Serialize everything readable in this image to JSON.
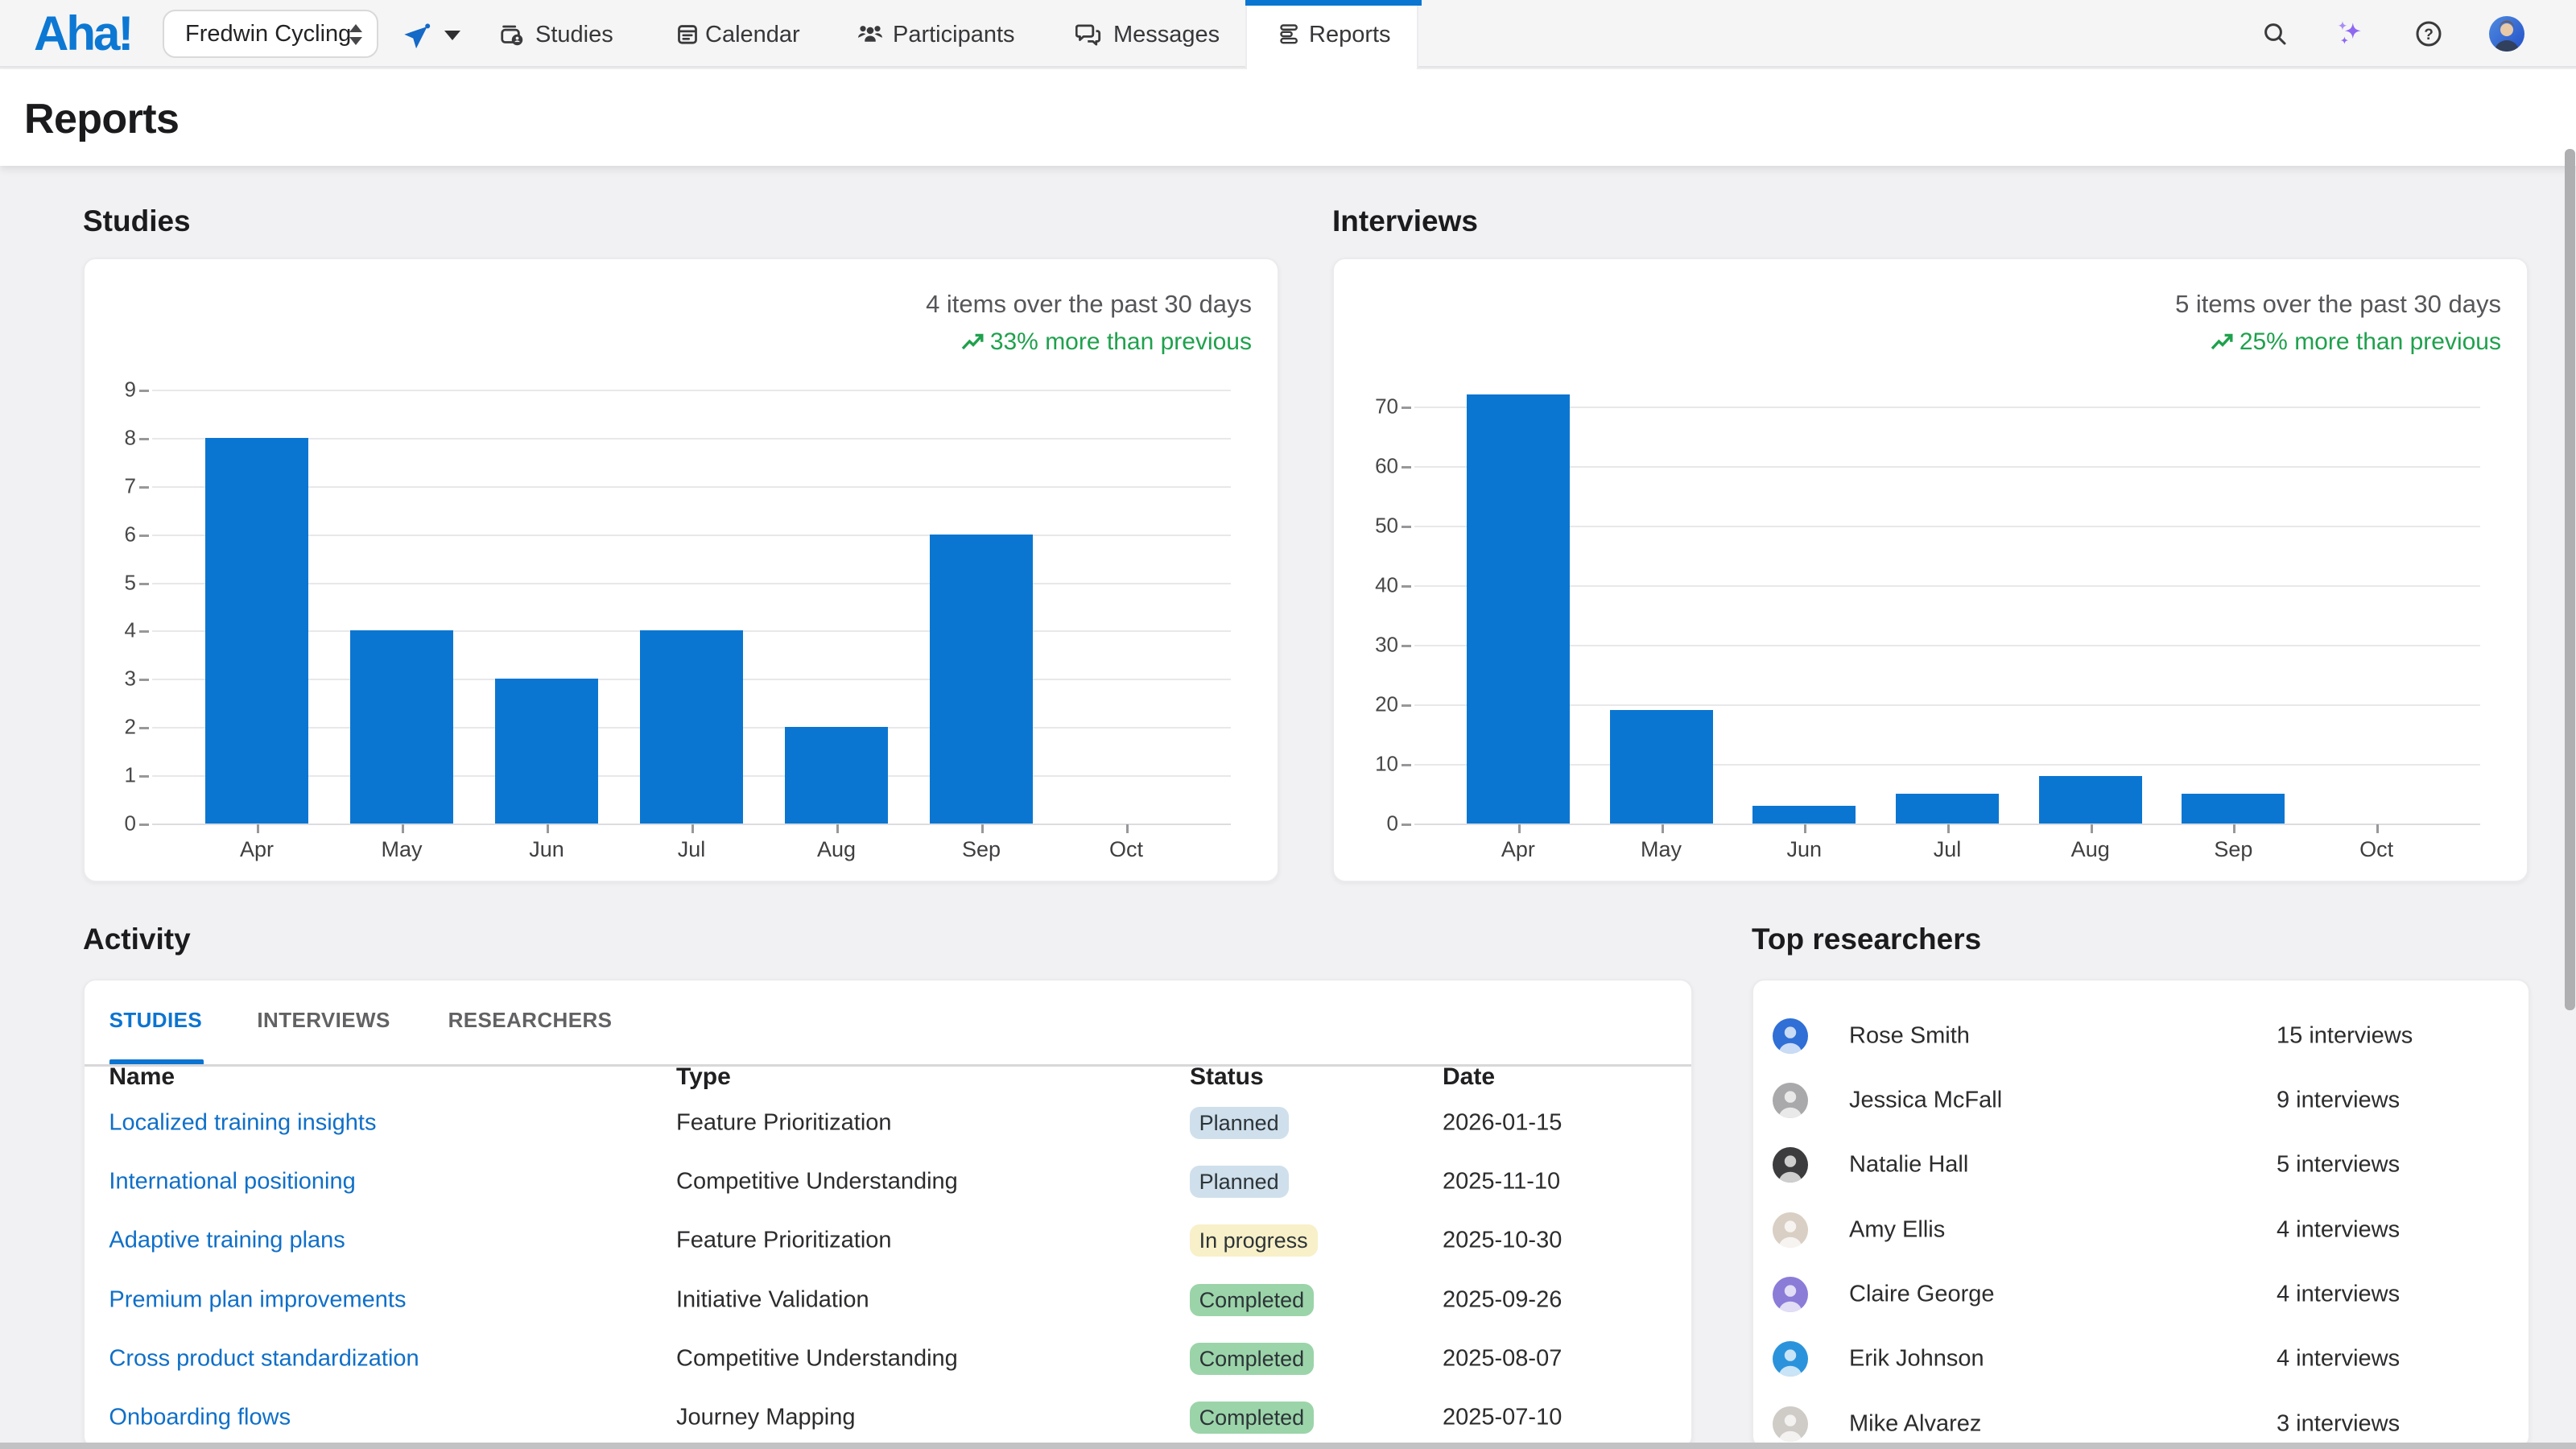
{
  "brand": {
    "logo_text": "Aha!",
    "accent_color": "#0c78d3"
  },
  "nav": {
    "workspace_selector": {
      "value": "Fredwin Cycling"
    },
    "items": [
      {
        "id": "studies",
        "label": "Studies",
        "icon": "studies-box-icon",
        "active": false
      },
      {
        "id": "calendar",
        "label": "Calendar",
        "icon": "calendar-icon",
        "active": false
      },
      {
        "id": "participants",
        "label": "Participants",
        "icon": "participants-icon",
        "active": false
      },
      {
        "id": "messages",
        "label": "Messages",
        "icon": "messages-icon",
        "active": false
      },
      {
        "id": "reports",
        "label": "Reports",
        "icon": "reports-icon",
        "active": true
      }
    ],
    "right_icons": [
      "search-icon",
      "ai-sparkle-icon",
      "help-icon",
      "user-avatar"
    ]
  },
  "page_title": "Reports",
  "chart_data": [
    {
      "type": "bar",
      "title": "Studies",
      "summary": "4 items over the past 30 days",
      "trend": "33% more than previous",
      "trend_direction": "up",
      "categories": [
        "Apr",
        "May",
        "Jun",
        "Jul",
        "Aug",
        "Sep",
        "Oct"
      ],
      "values": [
        8,
        4,
        3,
        4,
        2,
        6,
        0
      ],
      "ylim": [
        0,
        9
      ],
      "ytick_step": 1,
      "bar_color": "#0b76d1",
      "grid": true,
      "legend": false
    },
    {
      "type": "bar",
      "title": "Interviews",
      "summary": "5 items over the past 30 days",
      "trend": "25% more than previous",
      "trend_direction": "up",
      "categories": [
        "Apr",
        "May",
        "Jun",
        "Jul",
        "Aug",
        "Sep",
        "Oct"
      ],
      "values": [
        72,
        19,
        3,
        5,
        8,
        5,
        0
      ],
      "ylim": [
        0,
        75
      ],
      "ytick_step": 10,
      "bar_color": "#0b76d1",
      "grid": true,
      "legend": false
    }
  ],
  "activity": {
    "heading": "Activity",
    "tabs": [
      {
        "label": "STUDIES",
        "active": true
      },
      {
        "label": "INTERVIEWS",
        "active": false
      },
      {
        "label": "RESEARCHERS",
        "active": false
      }
    ],
    "columns": [
      "Name",
      "Type",
      "Status",
      "Date"
    ],
    "rows": [
      {
        "name": "Localized training insights",
        "type": "Feature Prioritization",
        "status": "Planned",
        "date": "2026-01-15"
      },
      {
        "name": "International positioning",
        "type": "Competitive Understanding",
        "status": "Planned",
        "date": "2025-11-10"
      },
      {
        "name": "Adaptive training plans",
        "type": "Feature Prioritization",
        "status": "In progress",
        "date": "2025-10-30"
      },
      {
        "name": "Premium plan improvements",
        "type": "Initiative Validation",
        "status": "Completed",
        "date": "2025-09-26"
      },
      {
        "name": "Cross product standardization",
        "type": "Competitive Understanding",
        "status": "Completed",
        "date": "2025-08-07"
      },
      {
        "name": "Onboarding flows",
        "type": "Journey Mapping",
        "status": "Completed",
        "date": "2025-07-10"
      }
    ],
    "status_colors": {
      "Planned": "#cfe0ec",
      "In progress": "#f8f0c8",
      "Completed": "#9bd4a9"
    }
  },
  "top_researchers": {
    "heading": "Top researchers",
    "rows": [
      {
        "name": "Rose Smith",
        "interviews": "15 interviews",
        "avatar_color": "#2f6fd6"
      },
      {
        "name": "Jessica McFall",
        "interviews": "9 interviews",
        "avatar_color": "#a9a9ab"
      },
      {
        "name": "Natalie Hall",
        "interviews": "5 interviews",
        "avatar_color": "#3c3c3e"
      },
      {
        "name": "Amy Ellis",
        "interviews": "4 interviews",
        "avatar_color": "#d9cfc4"
      },
      {
        "name": "Claire George",
        "interviews": "4 interviews",
        "avatar_color": "#8b7cd8"
      },
      {
        "name": "Erik Johnson",
        "interviews": "4 interviews",
        "avatar_color": "#2b93dc"
      },
      {
        "name": "Mike Alvarez",
        "interviews": "3 interviews",
        "avatar_color": "#cfcbc7"
      }
    ]
  }
}
